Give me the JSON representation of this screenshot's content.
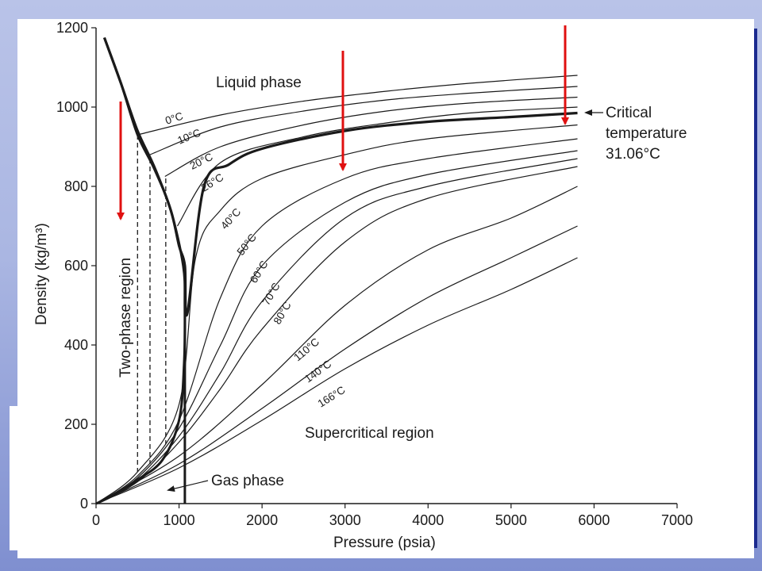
{
  "slide": {
    "accent_color": "#1b2a8f",
    "arrow_color": "#e01010"
  },
  "chart_data": {
    "type": "line",
    "title": "",
    "xlabel": "Pressure (psia)",
    "ylabel": "Density (kg/m³)",
    "xlim": [
      0,
      7000
    ],
    "ylim": [
      0,
      1200
    ],
    "x_ticks": [
      "0",
      "1000",
      "2000",
      "3000",
      "4000",
      "5000",
      "6000",
      "7000"
    ],
    "y_ticks": [
      "0",
      "200",
      "400",
      "600",
      "800",
      "1000",
      "1200"
    ],
    "grid": false,
    "critical_temperature": "31.06°C",
    "series": [
      {
        "name": "0°C",
        "x": [
          500,
          1500,
          2500,
          3500,
          4500,
          5800
        ],
        "y": [
          930,
          980,
          1015,
          1040,
          1060,
          1080
        ]
      },
      {
        "name": "10°C",
        "x": [
          650,
          1500,
          2500,
          3500,
          4500,
          5800
        ],
        "y": [
          880,
          950,
          990,
          1018,
          1035,
          1052
        ]
      },
      {
        "name": "20°C",
        "x": [
          830,
          1500,
          2500,
          3500,
          4500,
          5800
        ],
        "y": [
          825,
          900,
          955,
          990,
          1010,
          1025
        ]
      },
      {
        "name": "26°C",
        "x": [
          980,
          1500,
          2500,
          3500,
          4500,
          5800
        ],
        "y": [
          700,
          860,
          925,
          960,
          985,
          1000
        ]
      },
      {
        "name": "31.06°C",
        "x": [
          100,
          300,
          500,
          700,
          900,
          1000,
          1070,
          1100,
          1300,
          1600,
          2000,
          3000,
          4000,
          5000,
          5800
        ],
        "y": [
          1175,
          1060,
          940,
          850,
          740,
          650,
          600,
          480,
          800,
          855,
          895,
          940,
          963,
          975,
          985
        ]
      },
      {
        "name": "40°C",
        "x": [
          0,
          500,
          1000,
          1200,
          1500,
          2000,
          3000,
          4000,
          5800
        ],
        "y": [
          0,
          80,
          250,
          620,
          740,
          820,
          880,
          920,
          955
        ]
      },
      {
        "name": "50°C",
        "x": [
          0,
          500,
          1000,
          1500,
          2000,
          3000,
          4000,
          5800
        ],
        "y": [
          0,
          70,
          210,
          520,
          700,
          820,
          870,
          920
        ]
      },
      {
        "name": "60°C",
        "x": [
          0,
          500,
          1000,
          1500,
          2000,
          3000,
          4000,
          5800
        ],
        "y": [
          0,
          65,
          190,
          400,
          600,
          760,
          830,
          890
        ]
      },
      {
        "name": "70°C",
        "x": [
          0,
          500,
          1000,
          1500,
          2000,
          3000,
          4000,
          5800
        ],
        "y": [
          0,
          60,
          170,
          330,
          510,
          720,
          800,
          870
        ]
      },
      {
        "name": "80°C",
        "x": [
          0,
          500,
          1000,
          1500,
          2000,
          3000,
          4000,
          5800
        ],
        "y": [
          0,
          55,
          155,
          290,
          440,
          660,
          770,
          850
        ]
      },
      {
        "name": "110°C",
        "x": [
          0,
          1000,
          2000,
          3000,
          4000,
          5000,
          5800
        ],
        "y": [
          0,
          120,
          300,
          500,
          640,
          720,
          800
        ]
      },
      {
        "name": "140°C",
        "x": [
          0,
          1000,
          2000,
          3000,
          4000,
          5000,
          5800
        ],
        "y": [
          0,
          100,
          240,
          390,
          520,
          620,
          700
        ]
      },
      {
        "name": "166°C",
        "x": [
          0,
          1000,
          2000,
          3000,
          4000,
          5000,
          5800
        ],
        "y": [
          0,
          90,
          210,
          340,
          450,
          540,
          620
        ]
      }
    ],
    "annotations": {
      "liquid_phase": "Liquid phase",
      "two_phase_region": "Two-phase region",
      "supercritical_region": "Supercritical region",
      "gas_phase": "Gas phase",
      "critical_line1": "Critical",
      "critical_line2": "temperature",
      "critical_line3": "31.06°C"
    }
  }
}
